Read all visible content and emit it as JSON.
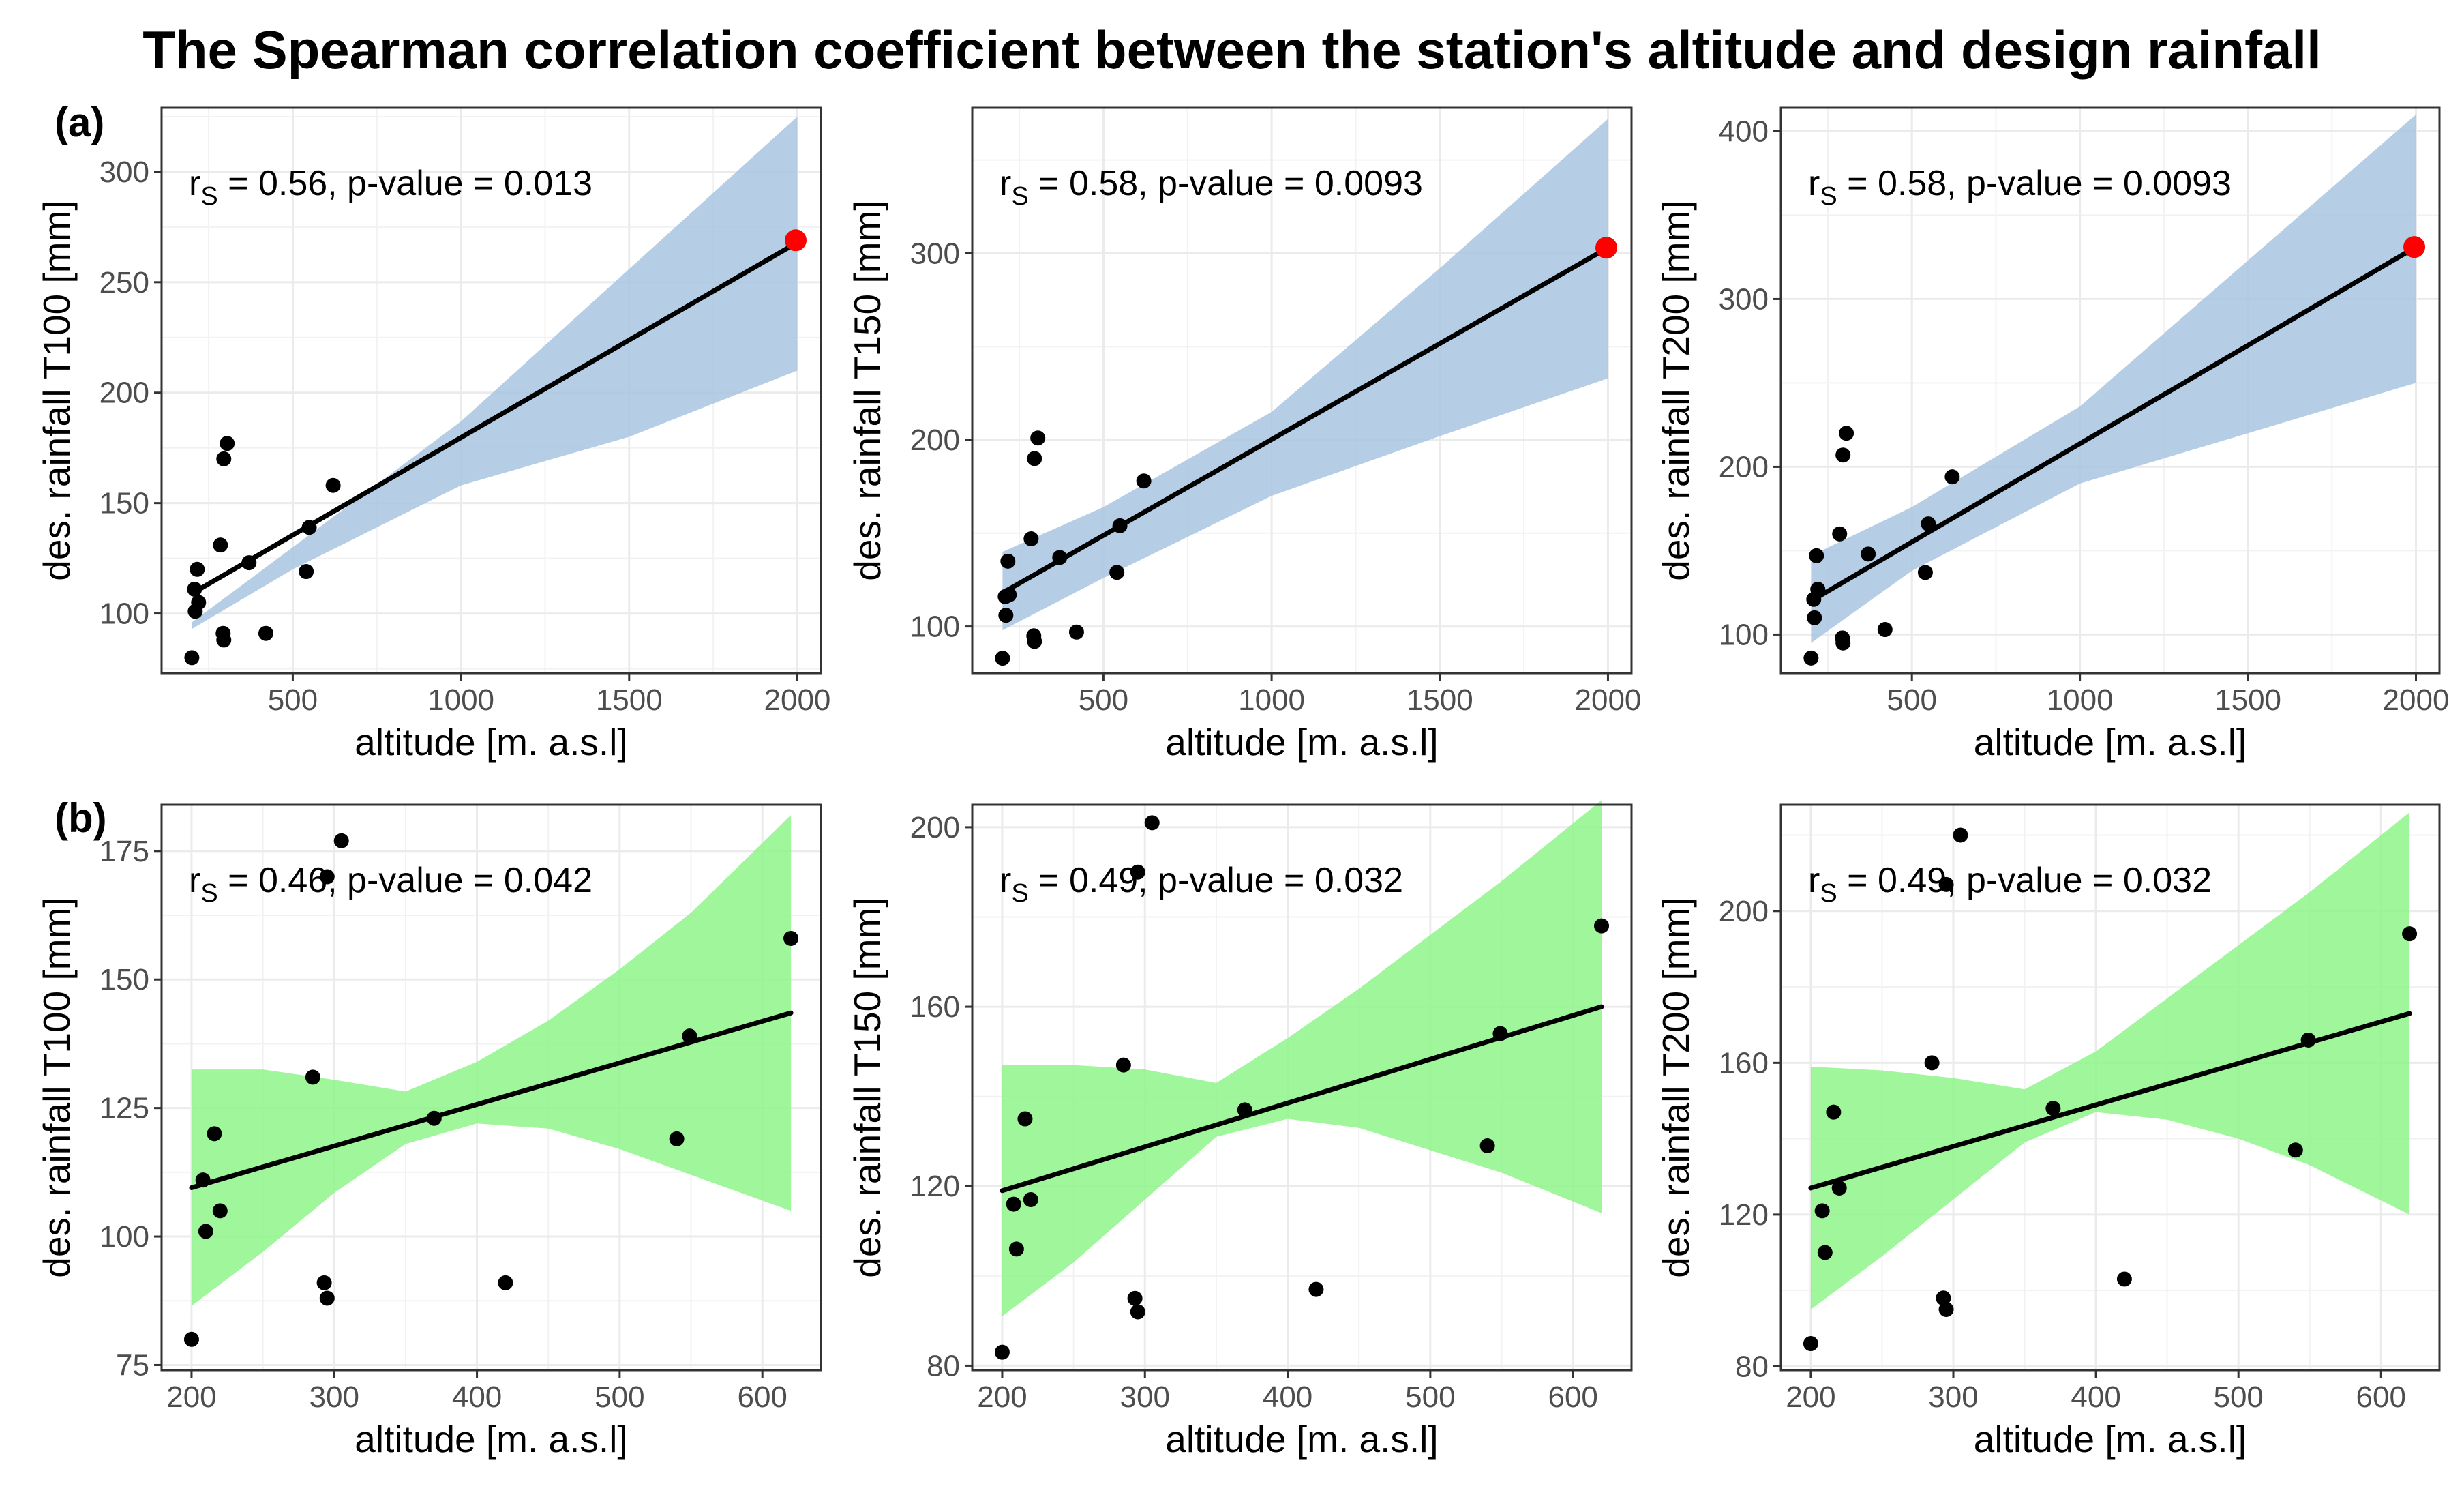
{
  "title": "The Spearman correlation coefficient between the station's altitude and design rainfall",
  "colors": {
    "band_a": "#a9c6e0",
    "band_b": "#8ef58a",
    "highlight": "#ff0000",
    "points": "#000000",
    "fit": "#000000"
  },
  "chart_data": [
    {
      "type": "scatter",
      "panel": "(a)",
      "xlabel": "altitude [m. a.s.l]",
      "ylabel": "des. rainfall T100 [mm]",
      "annotation": {
        "r": "r",
        "sub": "S",
        "text": " = 0.56, p-value = 0.013"
      },
      "xlim": [
        110,
        2070
      ],
      "ylim": [
        73,
        329
      ],
      "xticks": [
        500,
        1000,
        1500,
        2000
      ],
      "yticks": [
        100,
        150,
        200,
        250,
        300
      ],
      "fit": {
        "x": [
          200,
          2000
        ],
        "y": [
          109,
          268
        ]
      },
      "band": {
        "x": [
          200,
          500,
          1000,
          1500,
          2000
        ],
        "upper": [
          96,
          130,
          187,
          256,
          325
        ],
        "lower": [
          93,
          120,
          158,
          180,
          210
        ]
      },
      "x": [
        200,
        208,
        210,
        216,
        220,
        285,
        293,
        295,
        295,
        305,
        370,
        420,
        540,
        549,
        620
      ],
      "y": [
        80,
        111,
        101,
        120,
        105,
        131,
        91,
        88,
        170,
        177,
        123,
        91,
        119,
        139,
        158
      ],
      "highlight": {
        "x": 1995,
        "y": 269
      }
    },
    {
      "type": "scatter",
      "panel": "",
      "xlabel": "altitude [m. a.s.l]",
      "ylabel": "des. rainfall T150 [mm]",
      "annotation": {
        "r": "r",
        "sub": "S",
        "text": " = 0.58, p-value = 0.0093"
      },
      "xlim": [
        110,
        2070
      ],
      "ylim": [
        75,
        378
      ],
      "xticks": [
        500,
        1000,
        1500,
        2000
      ],
      "yticks": [
        100,
        200,
        300
      ],
      "fit": {
        "x": [
          200,
          2000
        ],
        "y": [
          118,
          303
        ]
      },
      "band": {
        "x": [
          200,
          500,
          1000,
          1500,
          2000
        ],
        "upper": [
          140,
          164,
          215,
          292,
          372
        ],
        "lower": [
          98,
          126,
          170,
          202,
          233
        ]
      },
      "x": [
        200,
        208,
        210,
        216,
        220,
        285,
        293,
        295,
        295,
        305,
        370,
        420,
        540,
        549,
        620
      ],
      "y": [
        83,
        116,
        106,
        135,
        117,
        147,
        95,
        92,
        190,
        201,
        137,
        97,
        129,
        154,
        178
      ],
      "highlight": {
        "x": 1995,
        "y": 303
      }
    },
    {
      "type": "scatter",
      "panel": "",
      "xlabel": "altitude [m. a.s.l]",
      "ylabel": "des. rainfall T200 [mm]",
      "annotation": {
        "r": "r",
        "sub": "S",
        "text": " = 0.58, p-value = 0.0093"
      },
      "xlim": [
        110,
        2070
      ],
      "ylim": [
        77,
        414
      ],
      "xticks": [
        500,
        1000,
        1500,
        2000
      ],
      "yticks": [
        100,
        200,
        300,
        400
      ],
      "fit": {
        "x": [
          200,
          2000
        ],
        "y": [
          120,
          331
        ]
      },
      "band": {
        "x": [
          200,
          500,
          1000,
          1500,
          2000
        ],
        "upper": [
          147,
          176,
          236,
          323,
          410
        ],
        "lower": [
          95,
          138,
          190,
          220,
          250
        ]
      },
      "x": [
        200,
        208,
        210,
        216,
        220,
        285,
        293,
        295,
        295,
        305,
        370,
        420,
        540,
        549,
        620
      ],
      "y": [
        86,
        121,
        110,
        147,
        127,
        160,
        98,
        95,
        207,
        220,
        148,
        103,
        137,
        166,
        194
      ],
      "highlight": {
        "x": 1995,
        "y": 331
      }
    },
    {
      "type": "scatter",
      "panel": "(b)",
      "xlabel": "altitude [m. a.s.l]",
      "ylabel": "des. rainfall T100 [mm]",
      "annotation": {
        "r": "r",
        "sub": "S",
        "text": " = 0.46, p-value = 0.042"
      },
      "xlim": [
        179,
        641
      ],
      "ylim": [
        74,
        184
      ],
      "xticks": [
        200,
        300,
        400,
        500,
        600
      ],
      "yticks": [
        75,
        100,
        125,
        150,
        175
      ],
      "fit": {
        "x": [
          200,
          620
        ],
        "y": [
          109.5,
          143.5
        ]
      },
      "band": {
        "x": [
          200,
          250,
          300,
          350,
          400,
          450,
          500,
          550,
          620
        ],
        "upper": [
          132.5,
          132.5,
          130.5,
          128.2,
          134,
          142,
          152,
          163,
          182
        ],
        "lower": [
          86.5,
          97,
          108.5,
          118,
          122,
          121,
          117,
          112,
          105
        ]
      },
      "x": [
        200,
        208,
        210,
        216,
        220,
        285,
        293,
        295,
        295,
        305,
        370,
        420,
        540,
        549,
        620
      ],
      "y": [
        80,
        111,
        101,
        120,
        105,
        131,
        91,
        88,
        170,
        177,
        123,
        91,
        119,
        139,
        158
      ],
      "highlight": null
    },
    {
      "type": "scatter",
      "panel": "",
      "xlabel": "altitude [m. a.s.l]",
      "ylabel": "des. rainfall T150 [mm]",
      "annotation": {
        "r": "r",
        "sub": "S",
        "text": " = 0.49, p-value = 0.032"
      },
      "xlim": [
        179,
        641
      ],
      "ylim": [
        79,
        205
      ],
      "xticks": [
        200,
        300,
        400,
        500,
        600
      ],
      "yticks": [
        80,
        120,
        160,
        200
      ],
      "fit": {
        "x": [
          200,
          620
        ],
        "y": [
          119,
          160
        ]
      },
      "band": {
        "x": [
          200,
          250,
          300,
          350,
          400,
          450,
          500,
          550,
          620
        ],
        "upper": [
          147,
          147,
          146,
          143,
          153,
          164,
          176,
          188,
          206
        ],
        "lower": [
          91,
          103,
          117,
          131,
          135,
          133,
          128,
          123,
          114
        ]
      },
      "x": [
        200,
        208,
        210,
        216,
        220,
        285,
        293,
        295,
        295,
        305,
        370,
        420,
        540,
        549,
        620
      ],
      "y": [
        83,
        116,
        106,
        135,
        117,
        147,
        95,
        92,
        190,
        201,
        137,
        97,
        129,
        154,
        178
      ],
      "highlight": null
    },
    {
      "type": "scatter",
      "panel": "",
      "xlabel": "altitude [m. a.s.l]",
      "ylabel": "des. rainfall T200 [mm]",
      "annotation": {
        "r": "r",
        "sub": "S",
        "text": " = 0.49, p-value = 0.032"
      },
      "xlim": [
        179,
        641
      ],
      "ylim": [
        79,
        228
      ],
      "xticks": [
        200,
        300,
        400,
        500,
        600
      ],
      "yticks": [
        80,
        120,
        160,
        200
      ],
      "fit": {
        "x": [
          200,
          620
        ],
        "y": [
          127,
          173
        ]
      },
      "band": {
        "x": [
          200,
          250,
          300,
          350,
          400,
          450,
          500,
          550,
          620
        ],
        "upper": [
          159,
          158,
          156,
          153,
          163,
          177,
          191,
          205,
          226
        ],
        "lower": [
          95,
          109,
          124,
          139,
          147,
          145,
          140,
          133,
          120
        ]
      },
      "x": [
        200,
        208,
        210,
        216,
        220,
        285,
        293,
        295,
        295,
        305,
        370,
        420,
        540,
        549,
        620
      ],
      "y": [
        86,
        121,
        110,
        147,
        127,
        160,
        98,
        95,
        207,
        220,
        148,
        103,
        137,
        166,
        194
      ],
      "highlight": null
    }
  ]
}
